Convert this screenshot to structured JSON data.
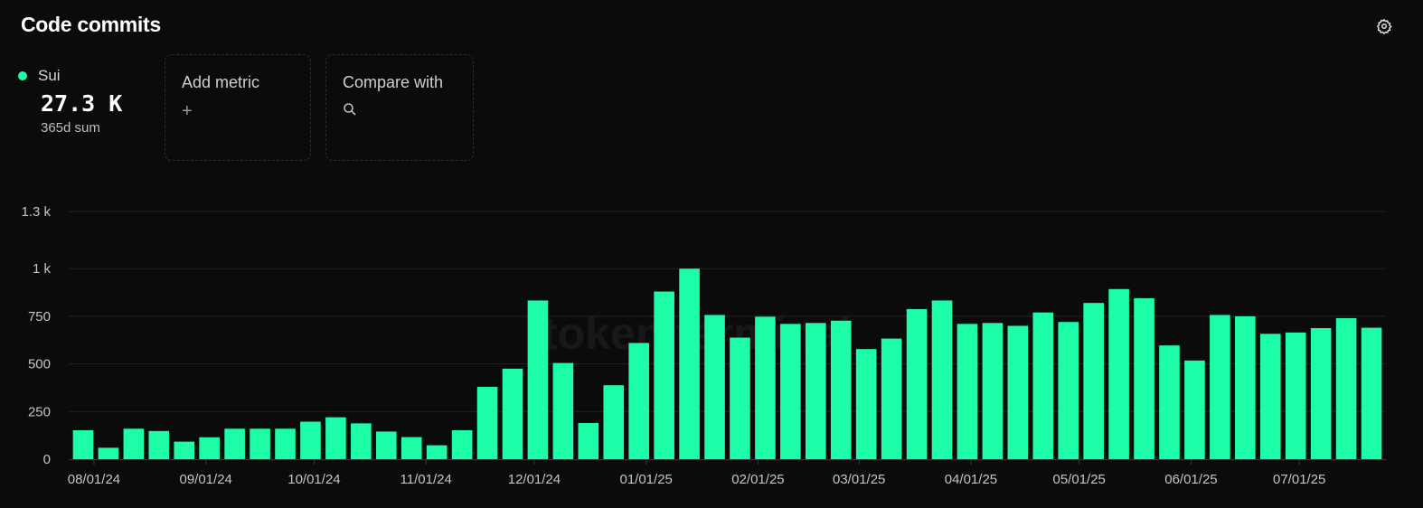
{
  "header": {
    "title": "Code commits"
  },
  "metric": {
    "name": "Sui",
    "value": "27.3 K",
    "sub": "365d sum",
    "color": "#1dfda8"
  },
  "add_metric": {
    "label": "Add metric",
    "icon": "plus-icon"
  },
  "compare": {
    "label": "Compare with",
    "icon": "search-icon"
  },
  "settings": {
    "icon": "gear-icon"
  },
  "watermark": "token terminal_",
  "colors": {
    "bar": "#1dfda8",
    "grid": "#232323",
    "axis": "#3a3a3a",
    "tick": "#c4c4c4",
    "background": "#0b0b0b"
  },
  "chart_data": {
    "type": "bar",
    "title": "Code commits",
    "xlabel": "",
    "ylabel": "",
    "ylim": [
      0,
      1300
    ],
    "grid": true,
    "y_ticks": [
      {
        "value": 0,
        "label": "0"
      },
      {
        "value": 250,
        "label": "250"
      },
      {
        "value": 500,
        "label": "500"
      },
      {
        "value": 750,
        "label": "750"
      },
      {
        "value": 1000,
        "label": "1 k"
      },
      {
        "value": 1300,
        "label": "1.3 k"
      }
    ],
    "x_ticks": [
      {
        "date": "2024-08-01",
        "label": "08/01/24"
      },
      {
        "date": "2024-09-01",
        "label": "09/01/24"
      },
      {
        "date": "2024-10-01",
        "label": "10/01/24"
      },
      {
        "date": "2024-11-01",
        "label": "11/01/24"
      },
      {
        "date": "2024-12-01",
        "label": "12/01/24"
      },
      {
        "date": "2025-01-01",
        "label": "01/01/25"
      },
      {
        "date": "2025-02-01",
        "label": "02/01/25"
      },
      {
        "date": "2025-03-01",
        "label": "03/01/25"
      },
      {
        "date": "2025-04-01",
        "label": "04/01/25"
      },
      {
        "date": "2025-05-01",
        "label": "05/01/25"
      },
      {
        "date": "2025-06-01",
        "label": "06/01/25"
      },
      {
        "date": "2025-07-01",
        "label": "07/01/25"
      }
    ],
    "series": [
      {
        "name": "Sui",
        "x": [
          "2024-07-29",
          "2024-08-05",
          "2024-08-12",
          "2024-08-19",
          "2024-08-26",
          "2024-09-02",
          "2024-09-09",
          "2024-09-16",
          "2024-09-23",
          "2024-09-30",
          "2024-10-07",
          "2024-10-14",
          "2024-10-21",
          "2024-10-28",
          "2024-11-04",
          "2024-11-11",
          "2024-11-18",
          "2024-11-25",
          "2024-12-02",
          "2024-12-09",
          "2024-12-16",
          "2024-12-23",
          "2024-12-30",
          "2025-01-06",
          "2025-01-13",
          "2025-01-20",
          "2025-01-27",
          "2025-02-03",
          "2025-02-10",
          "2025-02-17",
          "2025-02-24",
          "2025-03-03",
          "2025-03-10",
          "2025-03-17",
          "2025-03-24",
          "2025-03-31",
          "2025-04-07",
          "2025-04-14",
          "2025-04-21",
          "2025-04-28",
          "2025-05-05",
          "2025-05-12",
          "2025-05-19",
          "2025-05-26",
          "2025-06-02",
          "2025-06-09",
          "2025-06-16",
          "2025-06-23",
          "2025-06-30",
          "2025-07-07",
          "2025-07-14",
          "2025-07-21"
        ],
        "values": [
          152,
          60,
          160,
          148,
          92,
          115,
          160,
          160,
          160,
          197,
          220,
          188,
          145,
          116,
          73,
          152,
          380,
          475,
          833,
          505,
          190,
          388,
          610,
          880,
          1000,
          757,
          638,
          748,
          710,
          715,
          727,
          578,
          633,
          788,
          833,
          710,
          715,
          700,
          770,
          720,
          820,
          893,
          845,
          597,
          518,
          757,
          750,
          658,
          665,
          688,
          740,
          690
        ]
      }
    ]
  }
}
